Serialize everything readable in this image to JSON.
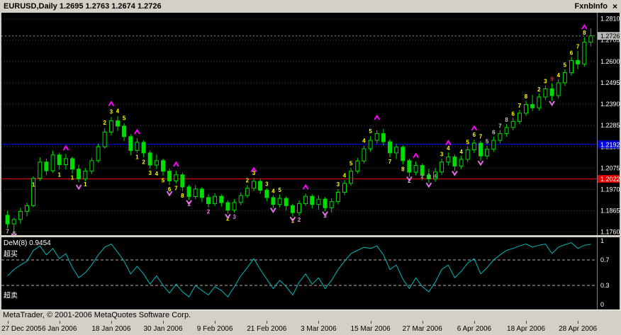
{
  "window": {
    "titlebar": {
      "title": "EURUSD,Daily 1.2695 1.2763 1.2674 1.2726",
      "brand": "FxnbInfo",
      "close_icon": "×"
    },
    "status": {
      "copyright": "MetaTrader, © 2001-2006 MetaQuotes Software Corp."
    }
  },
  "colors": {
    "background": "#000000",
    "chrome": "#d4d0c8",
    "grid": "#3c3c3c",
    "candle": "#00dd00",
    "line_blue": "#0000ff",
    "line_red": "#ff0000",
    "current_price": "#909090",
    "dem_line": "#00b8b8",
    "arrow_up": "#ff00ff",
    "arrow_down": "#e070e0",
    "scale_text": "#ffffff",
    "numbers": {
      "y": "#ffff00",
      "w": "#c8c8c8",
      "v": "#ee82ee",
      "g": "#9a9a9a",
      "r": "#ff2020"
    }
  },
  "chart_data": {
    "type": "candlestick",
    "symbol": "EURUSD",
    "timeframe": "Daily",
    "ohlc_display": {
      "open": "1.2695",
      "high": "1.2763",
      "low": "1.2674",
      "close": "1.2726"
    },
    "price_axis": {
      "top": 1.284,
      "bottom": 1.1745,
      "labels": [
        "1.2810",
        "1.2705",
        "1.2600",
        "1.2495",
        "1.2390",
        "1.2285",
        "1.2180",
        "1.2075",
        "1.1970",
        "1.1865",
        "1.1760"
      ],
      "tags": [
        {
          "text": "1.2726",
          "price": 1.2726,
          "bg": "#b8b8b8",
          "fg": "#000000"
        },
        {
          "text": "1.2192",
          "price": 1.2192,
          "bg": "#0000d8",
          "fg": "#ffffff"
        },
        {
          "text": "1.2022",
          "price": 1.2022,
          "bg": "#e00000",
          "fg": "#ffffff"
        }
      ]
    },
    "hlines": [
      {
        "price": 1.2726,
        "color": "#909090",
        "dash": "2,3"
      },
      {
        "price": 1.2192,
        "color": "#0000ff",
        "dash": ""
      },
      {
        "price": 1.2022,
        "color": "#ff0000",
        "dash": ""
      }
    ],
    "x_axis": {
      "tick_every": 8,
      "labels": [
        "27 Dec 2005",
        "6 Jan 2006",
        "18 Jan 2006",
        "30 Jan 2006",
        "9 Feb 2006",
        "21 Feb 2006",
        "3 Mar 2006",
        "15 Mar 2006",
        "27 Mar 2006",
        "6 Apr 2006",
        "18 Apr 2006",
        "28 Apr 2006"
      ]
    },
    "candles": [
      [
        1.1843,
        1.1865,
        1.178,
        1.18
      ],
      [
        1.18,
        1.1832,
        1.1762,
        1.1822
      ],
      [
        1.1822,
        1.188,
        1.18,
        1.1862
      ],
      [
        1.1862,
        1.1905,
        1.1838,
        1.189
      ],
      [
        1.189,
        1.2035,
        1.1882,
        1.2025
      ],
      [
        1.2025,
        1.2128,
        1.2012,
        1.2105
      ],
      [
        1.2105,
        1.2122,
        1.204,
        1.2062
      ],
      [
        1.2062,
        1.216,
        1.2052,
        1.214
      ],
      [
        1.214,
        1.2152,
        1.2068,
        1.2092
      ],
      [
        1.2092,
        1.2145,
        1.2068,
        1.2122
      ],
      [
        1.2122,
        1.2132,
        1.2048,
        1.207
      ],
      [
        1.207,
        1.2092,
        1.2005,
        1.2022
      ],
      [
        1.2022,
        1.2076,
        1.201,
        1.206
      ],
      [
        1.206,
        1.2126,
        1.2046,
        1.2112
      ],
      [
        1.2112,
        1.2196,
        1.2102,
        1.218
      ],
      [
        1.218,
        1.2272,
        1.217,
        1.2252
      ],
      [
        1.2252,
        1.2326,
        1.2236,
        1.2308
      ],
      [
        1.2308,
        1.233,
        1.2258,
        1.2282
      ],
      [
        1.2282,
        1.2296,
        1.2208,
        1.223
      ],
      [
        1.223,
        1.2242,
        1.2138,
        1.2162
      ],
      [
        1.2162,
        1.2222,
        1.215,
        1.2202
      ],
      [
        1.2202,
        1.2212,
        1.2128,
        1.215
      ],
      [
        1.215,
        1.2162,
        1.2072,
        1.209
      ],
      [
        1.209,
        1.2142,
        1.207,
        1.2112
      ],
      [
        1.2112,
        1.2122,
        1.2038,
        1.206
      ],
      [
        1.206,
        1.2072,
        1.1992,
        1.2012
      ],
      [
        1.2012,
        1.2062,
        1.2,
        1.2042
      ],
      [
        1.2042,
        1.2052,
        1.1962,
        1.1982
      ],
      [
        1.1982,
        1.1992,
        1.1918,
        1.1935
      ],
      [
        1.1935,
        1.1992,
        1.1922,
        1.1972
      ],
      [
        1.1972,
        1.1982,
        1.1908,
        1.193
      ],
      [
        1.193,
        1.1946,
        1.1882,
        1.19
      ],
      [
        1.19,
        1.1952,
        1.1888,
        1.1936
      ],
      [
        1.1936,
        1.1946,
        1.1886,
        1.1905
      ],
      [
        1.1905,
        1.1916,
        1.185,
        1.1868
      ],
      [
        1.1868,
        1.1922,
        1.1856,
        1.1906
      ],
      [
        1.1906,
        1.1956,
        1.1892,
        1.194
      ],
      [
        1.194,
        1.1992,
        1.1928,
        1.1976
      ],
      [
        1.1976,
        1.2026,
        1.1962,
        1.201
      ],
      [
        1.201,
        1.2022,
        1.1948,
        1.1966
      ],
      [
        1.1966,
        1.1976,
        1.1912,
        1.193
      ],
      [
        1.193,
        1.1942,
        1.1878,
        1.1896
      ],
      [
        1.1896,
        1.1946,
        1.1882,
        1.1926
      ],
      [
        1.1926,
        1.1936,
        1.1866,
        1.189
      ],
      [
        1.189,
        1.19,
        1.1836,
        1.1856
      ],
      [
        1.1856,
        1.1916,
        1.1842,
        1.19
      ],
      [
        1.19,
        1.195,
        1.1888,
        1.1936
      ],
      [
        1.1936,
        1.1946,
        1.1876,
        1.1896
      ],
      [
        1.1896,
        1.194,
        1.187,
        1.1922
      ],
      [
        1.1922,
        1.1932,
        1.1862,
        1.188
      ],
      [
        1.188,
        1.1926,
        1.1856,
        1.191
      ],
      [
        1.191,
        1.1972,
        1.1896,
        1.1956
      ],
      [
        1.1956,
        1.2016,
        1.1942,
        1.2
      ],
      [
        1.2,
        1.2076,
        1.1988,
        1.206
      ],
      [
        1.206,
        1.2126,
        1.2048,
        1.211
      ],
      [
        1.211,
        1.2186,
        1.2098,
        1.217
      ],
      [
        1.217,
        1.2232,
        1.2156,
        1.2212
      ],
      [
        1.2212,
        1.2262,
        1.2196,
        1.2245
      ],
      [
        1.2245,
        1.2268,
        1.2186,
        1.2205
      ],
      [
        1.2205,
        1.2216,
        1.2128,
        1.215
      ],
      [
        1.215,
        1.2196,
        1.212,
        1.2178
      ],
      [
        1.2178,
        1.2188,
        1.2092,
        1.2112
      ],
      [
        1.2112,
        1.2122,
        1.2032,
        1.2055
      ],
      [
        1.2055,
        1.2108,
        1.204,
        1.2088
      ],
      [
        1.2088,
        1.2098,
        1.2016,
        1.204
      ],
      [
        1.204,
        1.2072,
        1.2002,
        1.2022
      ],
      [
        1.2022,
        1.2076,
        1.2008,
        1.2056
      ],
      [
        1.2056,
        1.2122,
        1.2042,
        1.2105
      ],
      [
        1.2105,
        1.2152,
        1.2088,
        1.213
      ],
      [
        1.213,
        1.2142,
        1.2062,
        1.2085
      ],
      [
        1.2085,
        1.2136,
        1.207,
        1.2118
      ],
      [
        1.2118,
        1.2182,
        1.2105,
        1.2165
      ],
      [
        1.2165,
        1.2215,
        1.215,
        1.2198
      ],
      [
        1.2198,
        1.221,
        1.2112,
        1.2135
      ],
      [
        1.2135,
        1.2186,
        1.212,
        1.2168
      ],
      [
        1.2168,
        1.223,
        1.2155,
        1.2212
      ],
      [
        1.2212,
        1.2262,
        1.2198,
        1.2245
      ],
      [
        1.2245,
        1.2292,
        1.223,
        1.2275
      ],
      [
        1.2275,
        1.2322,
        1.226,
        1.2305
      ],
      [
        1.2305,
        1.2362,
        1.2292,
        1.2345
      ],
      [
        1.2345,
        1.2406,
        1.2332,
        1.2388
      ],
      [
        1.2388,
        1.2436,
        1.2356,
        1.2372
      ],
      [
        1.2372,
        1.2442,
        1.2358,
        1.2425
      ],
      [
        1.2425,
        1.2482,
        1.241,
        1.2465
      ],
      [
        1.2465,
        1.2492,
        1.2406,
        1.2432
      ],
      [
        1.2432,
        1.2512,
        1.2418,
        1.2495
      ],
      [
        1.2495,
        1.2562,
        1.248,
        1.2545
      ],
      [
        1.2545,
        1.2622,
        1.253,
        1.2605
      ],
      [
        1.2605,
        1.2652,
        1.2562,
        1.2588
      ],
      [
        1.2588,
        1.272,
        1.2575,
        1.2695
      ],
      [
        1.2695,
        1.2763,
        1.2674,
        1.2726
      ]
    ],
    "numbers": [
      [
        0,
        "7",
        1.1762,
        "w"
      ],
      [
        1,
        "8",
        1.1752,
        "w"
      ],
      [
        4,
        "1",
        1.1992,
        "y"
      ],
      [
        8,
        "1",
        1.2042,
        "y"
      ],
      [
        10,
        "1",
        1.2028,
        "y"
      ],
      [
        12,
        "1",
        1.1995,
        "y"
      ],
      [
        15,
        "2",
        1.2298,
        "y"
      ],
      [
        16,
        "3",
        1.2352,
        "y"
      ],
      [
        17,
        "4",
        1.2356,
        "y"
      ],
      [
        18,
        "5",
        1.232,
        "y"
      ],
      [
        20,
        "1",
        1.2128,
        "y"
      ],
      [
        21,
        "2",
        1.2105,
        "y"
      ],
      [
        22,
        "3",
        1.205,
        "y"
      ],
      [
        23,
        "4",
        1.2046,
        "y"
      ],
      [
        24,
        "5",
        1.2014,
        "y"
      ],
      [
        25,
        "6",
        1.197,
        "y"
      ],
      [
        26,
        "7",
        1.1976,
        "y"
      ],
      [
        27,
        "8",
        1.1938,
        "y"
      ],
      [
        28,
        "1",
        1.1896,
        "v"
      ],
      [
        31,
        "2",
        1.186,
        "v"
      ],
      [
        34,
        "2",
        1.1826,
        "y"
      ],
      [
        35,
        "3",
        1.1834,
        "v"
      ],
      [
        37,
        "2",
        1.2014,
        "y"
      ],
      [
        38,
        "3",
        1.205,
        "y"
      ],
      [
        40,
        "3",
        1.1996,
        "y"
      ],
      [
        41,
        "4",
        1.1962,
        "y"
      ],
      [
        42,
        "5",
        1.1966,
        "y"
      ],
      [
        44,
        "1",
        1.1814,
        "y"
      ],
      [
        45,
        "2",
        1.182,
        "v"
      ],
      [
        49,
        "3",
        1.184,
        "v"
      ],
      [
        51,
        "3",
        1.1994,
        "y"
      ],
      [
        52,
        "4",
        1.2038,
        "y"
      ],
      [
        53,
        "5",
        1.2098,
        "y"
      ],
      [
        55,
        "4",
        1.2208,
        "y"
      ],
      [
        56,
        "5",
        1.2256,
        "y"
      ],
      [
        59,
        "7",
        1.2106,
        "y"
      ],
      [
        61,
        "8",
        1.207,
        "y"
      ],
      [
        62,
        "2",
        1.2012,
        "w"
      ],
      [
        64,
        "2",
        1.2034,
        "g"
      ],
      [
        65,
        "3",
        1.2036,
        "g"
      ],
      [
        66,
        "4",
        1.2034,
        "g"
      ],
      [
        67,
        "3",
        1.2142,
        "y"
      ],
      [
        68,
        "4",
        1.2172,
        "y"
      ],
      [
        70,
        "4",
        1.2155,
        "y"
      ],
      [
        71,
        "5",
        1.2202,
        "y"
      ],
      [
        72,
        "6",
        1.2238,
        "y"
      ],
      [
        73,
        "7",
        1.223,
        "y"
      ],
      [
        74,
        "5",
        1.2206,
        "w"
      ],
      [
        75,
        "6",
        1.225,
        "w"
      ],
      [
        76,
        "7",
        1.2282,
        "w"
      ],
      [
        77,
        "8",
        1.2312,
        "w"
      ],
      [
        78,
        "6",
        1.2342,
        "y"
      ],
      [
        79,
        "7",
        1.2382,
        "y"
      ],
      [
        80,
        "8",
        1.2426,
        "y"
      ],
      [
        82,
        "2",
        1.2462,
        "y"
      ],
      [
        83,
        "3",
        1.2502,
        "y"
      ],
      [
        84,
        "9",
        1.2512,
        "r"
      ],
      [
        85,
        "4",
        1.2532,
        "y"
      ],
      [
        86,
        "5",
        1.2582,
        "y"
      ],
      [
        87,
        "6",
        1.2642,
        "y"
      ],
      [
        88,
        "7",
        1.2672,
        "y"
      ],
      [
        89,
        "8",
        1.274,
        "y"
      ]
    ],
    "arrows": [
      [
        1,
        "d",
        1.1744
      ],
      [
        9,
        "u",
        1.2172
      ],
      [
        11,
        "d",
        1.1984
      ],
      [
        16,
        "u",
        1.239
      ],
      [
        20,
        "u",
        1.2252
      ],
      [
        25,
        "d",
        1.1952
      ],
      [
        26,
        "u",
        1.2092
      ],
      [
        28,
        "d",
        1.1908
      ],
      [
        34,
        "d",
        1.184
      ],
      [
        38,
        "u",
        1.2065
      ],
      [
        41,
        "d",
        1.187
      ],
      [
        44,
        "d",
        1.1826
      ],
      [
        46,
        "u",
        1.198
      ],
      [
        49,
        "d",
        1.1852
      ],
      [
        57,
        "u",
        1.2322
      ],
      [
        62,
        "d",
        1.2024
      ],
      [
        63,
        "u",
        1.2135
      ],
      [
        65,
        "d",
        1.1994
      ],
      [
        68,
        "u",
        1.2198
      ],
      [
        69,
        "d",
        1.2052
      ],
      [
        72,
        "u",
        1.227
      ],
      [
        73,
        "d",
        1.2102
      ],
      [
        84,
        "d",
        1.2396
      ],
      [
        89,
        "u",
        1.2768
      ]
    ],
    "indicator": {
      "name": "DeM(8)",
      "value": "0.9454",
      "overbought_label": "超买",
      "oversold_label": "超卖",
      "levels": [
        0.7,
        0.3
      ],
      "range": [
        0,
        1
      ],
      "scale": [
        {
          "text": "1",
          "value": 1
        },
        {
          "text": "0.7",
          "value": 0.7
        },
        {
          "text": "0.3",
          "value": 0.3
        },
        {
          "text": "0",
          "value": 0
        }
      ],
      "values": [
        0.45,
        0.55,
        0.62,
        0.68,
        0.85,
        0.92,
        0.78,
        0.88,
        0.72,
        0.8,
        0.58,
        0.42,
        0.5,
        0.62,
        0.78,
        0.9,
        0.95,
        0.82,
        0.68,
        0.48,
        0.6,
        0.48,
        0.32,
        0.45,
        0.3,
        0.18,
        0.32,
        0.2,
        0.12,
        0.3,
        0.22,
        0.15,
        0.28,
        0.22,
        0.12,
        0.28,
        0.45,
        0.58,
        0.72,
        0.55,
        0.4,
        0.25,
        0.38,
        0.28,
        0.15,
        0.35,
        0.48,
        0.32,
        0.42,
        0.25,
        0.38,
        0.55,
        0.68,
        0.8,
        0.85,
        0.9,
        0.88,
        0.92,
        0.78,
        0.55,
        0.62,
        0.4,
        0.25,
        0.42,
        0.28,
        0.2,
        0.35,
        0.55,
        0.62,
        0.42,
        0.52,
        0.65,
        0.72,
        0.48,
        0.58,
        0.7,
        0.78,
        0.85,
        0.88,
        0.92,
        0.95,
        0.9,
        0.93,
        0.95,
        0.8,
        0.9,
        0.94,
        0.97,
        0.88,
        0.93,
        0.9454
      ]
    }
  }
}
